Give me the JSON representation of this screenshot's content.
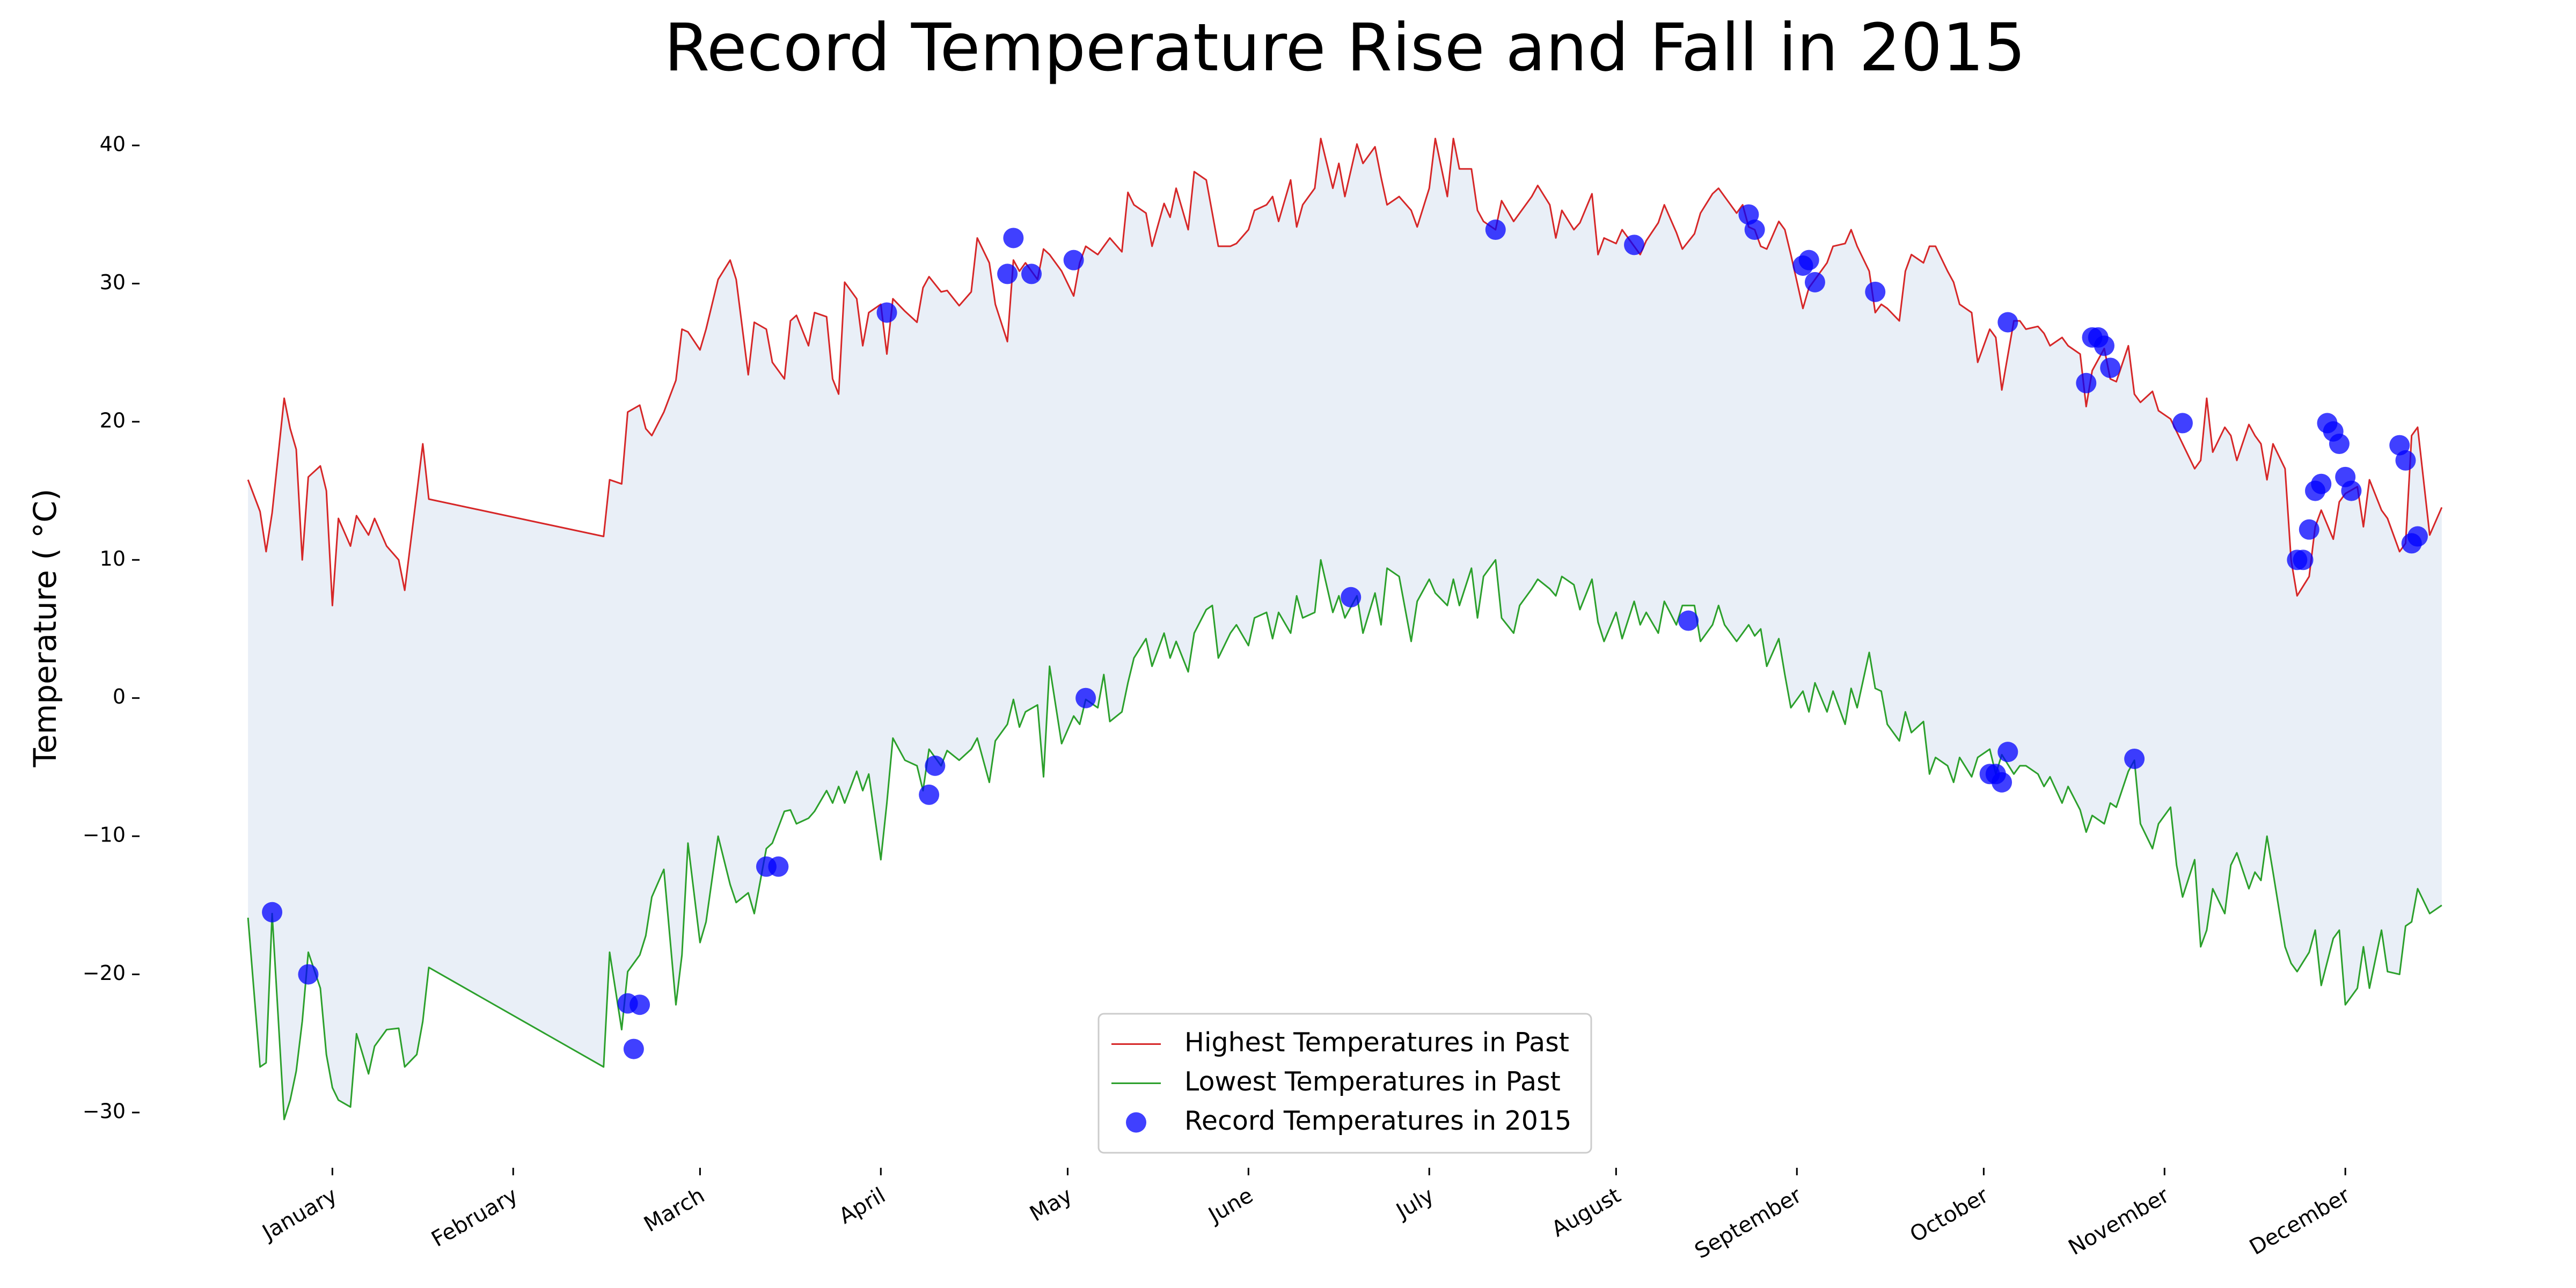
{
  "chart_data": {
    "type": "line",
    "title": "Record Temperature Rise and Fall in 2015",
    "y_label": "Temperature ( °C)",
    "xlim": [
      -17,
      383
    ],
    "ylim": [
      -34,
      44
    ],
    "xticks": [
      {
        "value": 15,
        "label": "January"
      },
      {
        "value": 45,
        "label": "February"
      },
      {
        "value": 76,
        "label": "March"
      },
      {
        "value": 106,
        "label": "April"
      },
      {
        "value": 137,
        "label": "May"
      },
      {
        "value": 167,
        "label": "June"
      },
      {
        "value": 197,
        "label": "July"
      },
      {
        "value": 228,
        "label": "August"
      },
      {
        "value": 258,
        "label": "September"
      },
      {
        "value": 289,
        "label": "October"
      },
      {
        "value": 319,
        "label": "November"
      },
      {
        "value": 349,
        "label": "December"
      }
    ],
    "yticks": [
      {
        "value": -30,
        "label": "−30"
      },
      {
        "value": -20,
        "label": "−20"
      },
      {
        "value": -10,
        "label": "−10"
      },
      0,
      10,
      20,
      30,
      40
    ],
    "grid": false,
    "legend": "lower center",
    "fill_color": "#e9eff7",
    "x": [
      1,
      3,
      4,
      5,
      7,
      8,
      9,
      10,
      11,
      13,
      14,
      15,
      16,
      18,
      19,
      21,
      22,
      24,
      26,
      27,
      29,
      30,
      31,
      60,
      61,
      63,
      64,
      66,
      67,
      68,
      70,
      72,
      73,
      74,
      76,
      77,
      79,
      81,
      82,
      84,
      85,
      87,
      88,
      90,
      91,
      92,
      94,
      95,
      97,
      98,
      99,
      100,
      102,
      103,
      104,
      106,
      107,
      108,
      110,
      112,
      113,
      114,
      116,
      117,
      119,
      121,
      122,
      124,
      125,
      127,
      128,
      129,
      130,
      132,
      133,
      134,
      136,
      138,
      139,
      140,
      142,
      143,
      144,
      146,
      147,
      148,
      150,
      151,
      153,
      154,
      155,
      157,
      158,
      160,
      161,
      162,
      164,
      165,
      167,
      168,
      170,
      171,
      172,
      174,
      175,
      176,
      178,
      179,
      181,
      182,
      183,
      185,
      186,
      188,
      189,
      190,
      192,
      194,
      195,
      197,
      198,
      200,
      201,
      202,
      204,
      205,
      206,
      208,
      209,
      211,
      212,
      214,
      215,
      217,
      218,
      219,
      221,
      222,
      224,
      225,
      226,
      228,
      229,
      231,
      232,
      233,
      235,
      236,
      238,
      239,
      241,
      242,
      244,
      245,
      246,
      248,
      249,
      250,
      251,
      252,
      253,
      255,
      256,
      257,
      259,
      260,
      261,
      263,
      264,
      266,
      267,
      268,
      270,
      271,
      272,
      273,
      275,
      276,
      277,
      279,
      280,
      281,
      283,
      284,
      285,
      287,
      288,
      290,
      291,
      292,
      294,
      295,
      296,
      298,
      299,
      300,
      302,
      303,
      305,
      306,
      307,
      309,
      310,
      311,
      313,
      314,
      315,
      317,
      318,
      320,
      321,
      322,
      324,
      325,
      326,
      327,
      329,
      330,
      331,
      333,
      334,
      335,
      336,
      337,
      339,
      340,
      341,
      343,
      344,
      345,
      347,
      348,
      349,
      351,
      352,
      353,
      355,
      356,
      358,
      359,
      360,
      361,
      363,
      365
    ],
    "series": [
      {
        "name": "Highest Temperatures in Past",
        "type": "line",
        "color": "#d62728",
        "values": [
          15.8,
          13.5,
          10.6,
          13.4,
          21.7,
          19.5,
          18,
          10,
          16,
          16.8,
          15,
          6.7,
          13,
          11,
          13.2,
          11.8,
          13,
          11,
          10,
          7.8,
          14.8,
          18.4,
          14.4,
          11.7,
          15.8,
          15.5,
          20.7,
          21.2,
          19.5,
          19,
          20.7,
          23,
          26.7,
          26.5,
          25.2,
          26.7,
          30.3,
          31.7,
          30.3,
          23.4,
          27.2,
          26.7,
          24.3,
          23.1,
          27.3,
          27.7,
          25.5,
          27.9,
          27.6,
          23.1,
          22,
          30.1,
          28.9,
          25.5,
          27.9,
          28.5,
          24.9,
          28.9,
          28,
          27.2,
          29.7,
          30.5,
          29.4,
          29.5,
          28.4,
          29.4,
          33.3,
          31.5,
          28.5,
          25.8,
          31.7,
          30.9,
          31.5,
          30.3,
          32.5,
          32.1,
          30.9,
          29.1,
          31.5,
          32.7,
          32.1,
          32.7,
          33.3,
          32.3,
          36.6,
          35.7,
          35.1,
          32.7,
          35.8,
          34.8,
          36.9,
          33.9,
          38.1,
          37.5,
          35.1,
          32.7,
          32.7,
          32.9,
          33.9,
          35.3,
          35.7,
          36.3,
          34.5,
          37.5,
          34.1,
          35.7,
          36.9,
          40.5,
          36.9,
          38.7,
          36.3,
          40.1,
          38.7,
          39.9,
          37.7,
          35.7,
          36.3,
          35.3,
          34.1,
          36.9,
          40.5,
          36.3,
          40.5,
          38.3,
          38.3,
          35.3,
          34.5,
          33.9,
          36,
          34.5,
          35.1,
          36.3,
          37.1,
          35.7,
          33.3,
          35.3,
          33.9,
          34.4,
          36.5,
          32.1,
          33.3,
          32.9,
          33.9,
          32.7,
          32.1,
          33.1,
          34.4,
          35.7,
          33.7,
          32.5,
          33.6,
          35.1,
          36.5,
          36.9,
          36.3,
          35.1,
          35.7,
          34.1,
          33.9,
          32.7,
          32.5,
          34.5,
          33.9,
          32.1,
          28.2,
          29.7,
          30.3,
          31.5,
          32.7,
          32.9,
          33.9,
          32.7,
          30.9,
          27.9,
          28.5,
          28.2,
          27.3,
          30.9,
          32.1,
          31.5,
          32.7,
          32.7,
          30.9,
          30.1,
          28.5,
          27.9,
          24.3,
          26.7,
          26.1,
          22.3,
          27.3,
          27.3,
          26.7,
          26.9,
          26.4,
          25.5,
          26.1,
          25.5,
          24.9,
          21.1,
          23.7,
          25.3,
          23.1,
          22.9,
          25.5,
          22,
          21.4,
          22.2,
          20.8,
          20.2,
          19.3,
          18.4,
          16.6,
          17.2,
          21.7,
          17.8,
          19.6,
          19,
          17.2,
          19.8,
          19,
          18.4,
          15.8,
          18.4,
          16.6,
          10,
          7.4,
          8.8,
          12.4,
          13.6,
          11.5,
          14.2,
          14.8,
          15.3,
          12.4,
          15.8,
          13.6,
          13,
          10.6,
          11.2,
          19,
          19.6,
          11.8,
          13.8
        ]
      },
      {
        "name": "Lowest Temperatures in Past",
        "type": "line",
        "color": "#2ca02c",
        "values": [
          -15.9,
          -26.7,
          -26.4,
          -15.6,
          -30.5,
          -29.1,
          -27,
          -23.4,
          -18.4,
          -21,
          -25.8,
          -28.2,
          -29.1,
          -29.6,
          -24.3,
          -27.2,
          -25.2,
          -24,
          -23.9,
          -26.7,
          -25.8,
          -23.4,
          -19.5,
          -26.7,
          -18.4,
          -24,
          -19.8,
          -18.6,
          -17.2,
          -14.4,
          -12.4,
          -22.2,
          -18.6,
          -10.5,
          -17.7,
          -16.2,
          -10,
          -13.5,
          -14.8,
          -14.1,
          -15.6,
          -10.9,
          -10.5,
          -8.2,
          -8.1,
          -9.1,
          -8.7,
          -8.2,
          -6.7,
          -7.6,
          -6.4,
          -7.6,
          -5.3,
          -6.7,
          -5.5,
          -11.7,
          -7.6,
          -2.9,
          -4.5,
          -4.9,
          -6.7,
          -3.7,
          -4.9,
          -3.8,
          -4.5,
          -3.7,
          -2.9,
          -6.1,
          -3.1,
          -1.9,
          -0.1,
          -2.1,
          -1,
          -0.5,
          -5.7,
          2.3,
          -3.3,
          -1.3,
          -1.9,
          -0.1,
          -0.7,
          1.7,
          -1.7,
          -1,
          1.1,
          2.9,
          4.3,
          2.3,
          4.7,
          2.9,
          4.1,
          1.9,
          4.7,
          6.4,
          6.7,
          2.9,
          4.7,
          5.3,
          3.8,
          5.8,
          6.2,
          4.3,
          6.2,
          4.7,
          7.4,
          5.8,
          6.2,
          10,
          6.2,
          7.4,
          5.8,
          7.4,
          4.7,
          7.6,
          5.3,
          9.4,
          8.8,
          4.1,
          7,
          8.6,
          7.6,
          6.7,
          8.6,
          6.7,
          9.4,
          5.8,
          8.8,
          10,
          5.8,
          4.7,
          6.7,
          7.9,
          8.6,
          7.9,
          7.4,
          8.8,
          8.2,
          6.4,
          8.6,
          5.5,
          4.1,
          6.2,
          4.3,
          7,
          5.3,
          6.2,
          4.7,
          7,
          5.3,
          6.7,
          6.7,
          4.1,
          5.3,
          6.7,
          5.3,
          4.1,
          4.7,
          5.3,
          4.5,
          5,
          2.3,
          4.3,
          1.7,
          -0.7,
          0.5,
          -1,
          1.1,
          -1,
          0.5,
          -1.9,
          0.7,
          -0.7,
          3.3,
          0.7,
          0.5,
          -1.9,
          -3.1,
          -1,
          -2.5,
          -1.7,
          -5.5,
          -4.3,
          -4.9,
          -6.1,
          -4.3,
          -5.7,
          -4.3,
          -3.7,
          -5.5,
          -4.1,
          -5.5,
          -4.9,
          -4.9,
          -5.5,
          -6.4,
          -5.7,
          -7.6,
          -6.4,
          -8.1,
          -9.7,
          -8.5,
          -9.1,
          -7.6,
          -7.9,
          -5.3,
          -4.5,
          -9.1,
          -10.9,
          -9.1,
          -7.9,
          -12.1,
          -14.4,
          -11.7,
          -18,
          -16.8,
          -13.8,
          -15.6,
          -12.1,
          -11.2,
          -13.8,
          -12.6,
          -13.2,
          -10,
          -12.6,
          -18,
          -19.2,
          -19.8,
          -18.4,
          -16.8,
          -20.8,
          -17.4,
          -16.8,
          -22.2,
          -21,
          -18,
          -21,
          -16.8,
          -19.8,
          -20,
          -16.5,
          -16.2,
          -13.8,
          -15.6,
          -15
        ]
      },
      {
        "name": "Record Temperatures in 2015",
        "type": "scatter",
        "color": "#0000ff",
        "x": [
          5,
          11,
          64,
          65,
          66,
          87,
          89,
          107,
          114,
          115,
          127,
          128,
          131,
          138,
          140,
          184,
          208,
          231,
          240,
          250,
          251,
          259,
          260,
          261,
          271,
          290,
          291,
          292,
          293,
          293,
          306,
          307,
          308,
          309,
          310,
          314,
          322,
          341,
          342,
          343,
          344,
          345,
          346,
          347,
          348,
          349,
          350,
          358,
          359,
          360,
          361
        ],
        "values": [
          -15.5,
          -20,
          -22.1,
          -25.4,
          -22.2,
          -12.2,
          -12.2,
          27.9,
          -7,
          -4.9,
          30.7,
          33.3,
          30.7,
          31.7,
          0,
          7.3,
          33.9,
          32.8,
          5.6,
          35,
          33.9,
          31.3,
          31.7,
          30.1,
          29.4,
          -5.5,
          -5.5,
          -6.1,
          27.2,
          -3.9,
          22.8,
          26.1,
          26.1,
          25.5,
          23.9,
          -4.4,
          19.9,
          10,
          10,
          12.2,
          15,
          15.5,
          19.9,
          19.3,
          18.4,
          16,
          15,
          18.3,
          17.2,
          11.2,
          11.7
        ]
      }
    ]
  }
}
